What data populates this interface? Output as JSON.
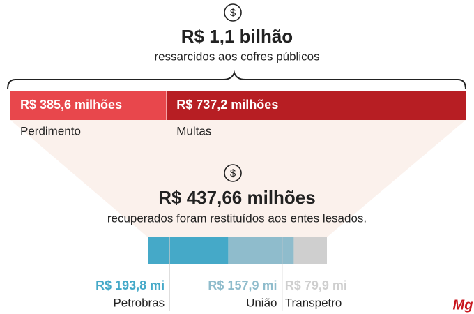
{
  "chart_data": [
    {
      "type": "stacked-bar",
      "title": "R$ 1,1 bilhão",
      "subtitle": "ressarcidos aos cofres públicos",
      "series": [
        {
          "name": "Perdimento",
          "color": "#e8474c",
          "values": [
            385.6
          ],
          "value_labels": [
            "R$ 385,6 milhões"
          ]
        },
        {
          "name": "Multas",
          "color": "#b71e23",
          "values": [
            737.2
          ],
          "value_labels": [
            "R$ 737,2 milhões"
          ]
        }
      ]
    },
    {
      "type": "stacked-bar",
      "title": "R$ 437,66 milhões",
      "subtitle": "recuperados foram restituídos aos entes lesados.",
      "series": [
        {
          "name": "Petrobras",
          "color": "#45a9c8",
          "values": [
            193.8
          ],
          "value_labels": [
            "R$ 193,8 mi"
          ]
        },
        {
          "name": "União",
          "color": "#8fbccc",
          "values": [
            157.9
          ],
          "value_labels": [
            "R$ 157,9 mi"
          ]
        },
        {
          "name": "Transpetro",
          "color": "#cfcfcf",
          "values": [
            79.9
          ],
          "value_labels": [
            "R$ 79,9 mi"
          ]
        }
      ]
    }
  ],
  "logo": "Mg"
}
